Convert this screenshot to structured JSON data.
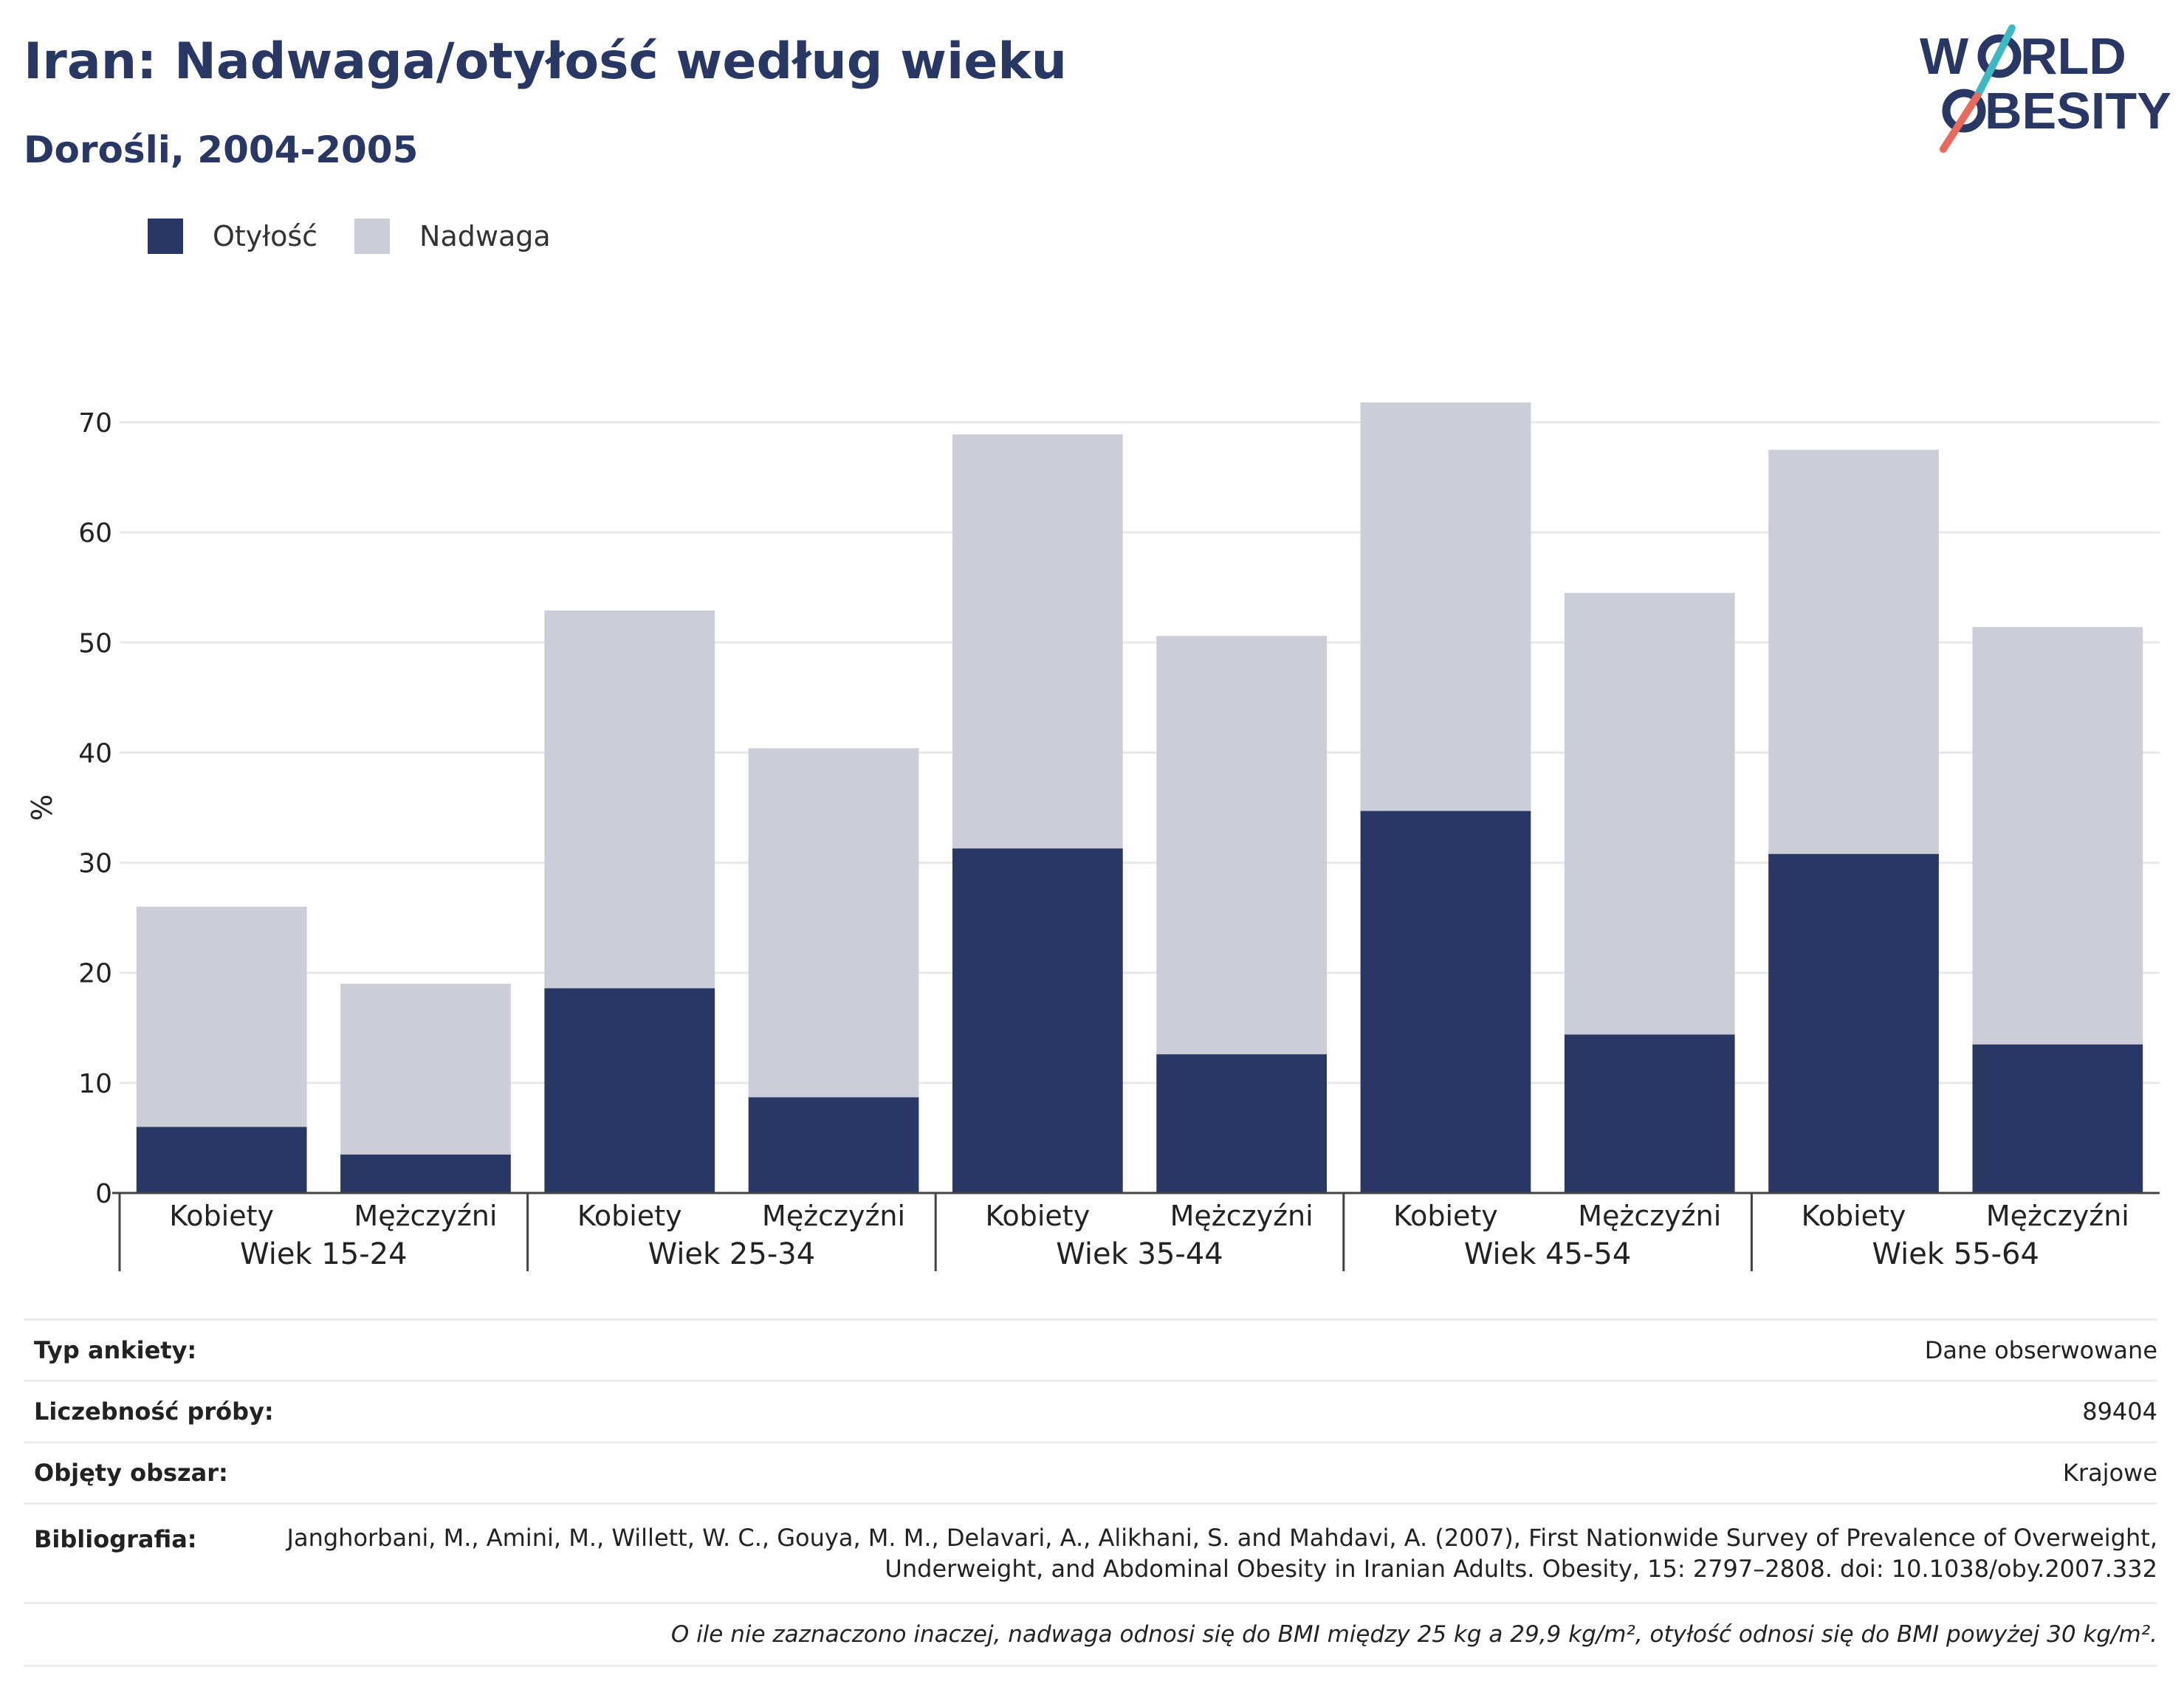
{
  "header": {
    "title": "Iran: Nadwaga/otyłość według wieku",
    "subtitle": "Dorośli, 2004-2005"
  },
  "logo": {
    "line1": "W  RLD",
    "line2": "  BESITY"
  },
  "colors": {
    "obesity": "#283764",
    "overweight": "#cbcdd9",
    "grid": "#e8e8ec",
    "axis": "#444444",
    "accent_teal": "#3db8c4",
    "accent_red": "#e86a5c"
  },
  "chart_data": {
    "type": "bar",
    "stacked": true,
    "ylabel": "%",
    "ylim": [
      0,
      70
    ],
    "yticks": [
      0,
      10,
      20,
      30,
      40,
      50,
      60,
      70
    ],
    "grid": true,
    "legend_position": "top-left",
    "categories": [
      "Kobiety",
      "Mężczyźni",
      "Kobiety",
      "Mężczyźni",
      "Kobiety",
      "Mężczyźni",
      "Kobiety",
      "Mężczyźni",
      "Kobiety",
      "Mężczyźni"
    ],
    "groups": [
      "Wiek 15-24",
      "Wiek 25-34",
      "Wiek 35-44",
      "Wiek 45-54",
      "Wiek 55-64"
    ],
    "series": [
      {
        "name": "Otyłość",
        "values": [
          6.0,
          3.5,
          18.6,
          8.7,
          31.3,
          12.6,
          34.7,
          14.4,
          30.8,
          13.5
        ]
      },
      {
        "name": "Nadwaga",
        "values": [
          20.0,
          15.5,
          34.3,
          31.7,
          37.6,
          38.0,
          37.1,
          40.1,
          36.7,
          37.9
        ]
      }
    ]
  },
  "info": [
    {
      "label": "Typ ankiety:",
      "value": "Dane obserwowane"
    },
    {
      "label": "Liczebność próby:",
      "value": "89404"
    },
    {
      "label": "Objęty obszar:",
      "value": "Krajowe"
    },
    {
      "label": "Bibliografia:",
      "value": "Janghorbani, M., Amini, M., Willett, W. C., Gouya, M. M., Delavari, A., Alikhani, S. and Mahdavi, A. (2007), First Nationwide Survey of Prevalence of Overweight, Underweight, and Abdominal Obesity in Iranian Adults. Obesity, 15: 2797–2808. doi: 10.1038/oby.2007.332"
    }
  ],
  "footnote": "O ile nie zaznaczono inaczej, nadwaga odnosi się do BMI między 25 kg a 29,9 kg/m², otyłość odnosi się do BMI powyżej 30 kg/m²."
}
